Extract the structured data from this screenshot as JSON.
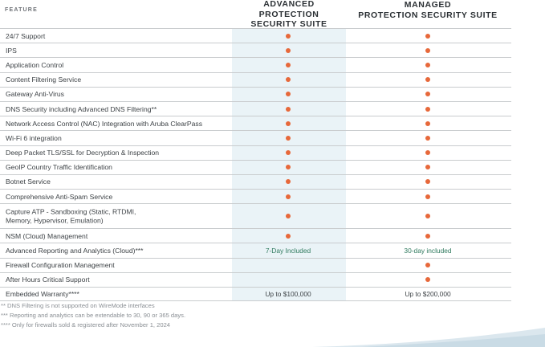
{
  "header": {
    "feature_label": "FEATURE",
    "col1_line1": "ADVANCED PROTECTION",
    "col1_line2": "SECURITY SUITE",
    "col2_line1": "MANAGED",
    "col2_line2": "PROTECTION SECURITY SUITE"
  },
  "colors": {
    "accent_dot": "#e7683a",
    "highlight_column": "#eaf3f7",
    "included_text": "#2f7a5e"
  },
  "rows": [
    {
      "feature": "24/7 Support",
      "col1": "dot",
      "col2": "dot"
    },
    {
      "feature": "IPS",
      "col1": "dot",
      "col2": "dot"
    },
    {
      "feature": "Application Control",
      "col1": "dot",
      "col2": "dot"
    },
    {
      "feature": "Content Filtering Service",
      "col1": "dot",
      "col2": "dot"
    },
    {
      "feature": "Gateway Anti-Virus",
      "col1": "dot",
      "col2": "dot"
    },
    {
      "feature": "DNS Security including Advanced DNS Filtering**",
      "col1": "dot",
      "col2": "dot"
    },
    {
      "feature": "Network Access Control (NAC) Integration with Aruba ClearPass",
      "col1": "dot",
      "col2": "dot"
    },
    {
      "feature": "Wi-Fi 6 integration",
      "col1": "dot",
      "col2": "dot"
    },
    {
      "feature": "Deep Packet TLS/SSL for Decryption & Inspection",
      "col1": "dot",
      "col2": "dot"
    },
    {
      "feature": "GeoIP Country Traffic Identification",
      "col1": "dot",
      "col2": "dot"
    },
    {
      "feature": "Botnet Service",
      "col1": "dot",
      "col2": "dot"
    },
    {
      "feature": "Comprehensive Anti-Spam Service",
      "col1": "dot",
      "col2": "dot"
    },
    {
      "feature": "Capture ATP -  Sandboxing (Static, RTDMI,",
      "feature_line2": "Memory, Hypervisor, Emulation)",
      "col1": "dot",
      "col2": "dot"
    },
    {
      "feature": "NSM (Cloud) Management",
      "col1": "dot",
      "col2": "dot"
    },
    {
      "feature": "Advanced Reporting and Analytics (Cloud)***",
      "col1_text": "7-Day Included",
      "col2_text": "30-day included"
    },
    {
      "feature": "Firewall Configuration Management",
      "col1": "",
      "col2": "dot"
    },
    {
      "feature": "After Hours Critical Support",
      "col1": "",
      "col2": "dot"
    },
    {
      "feature": "Embedded Warranty****",
      "col1_text": "Up to $100,000",
      "col2_text": "Up to $200,000"
    }
  ],
  "footnotes": [
    "** DNS Filtering is not supported on WireMode interfaces",
    "*** Reporting and analytics can be extendable to 30, 90 or 365 days.",
    "**** Only for firewalls sold & registered after November 1, 2024"
  ]
}
